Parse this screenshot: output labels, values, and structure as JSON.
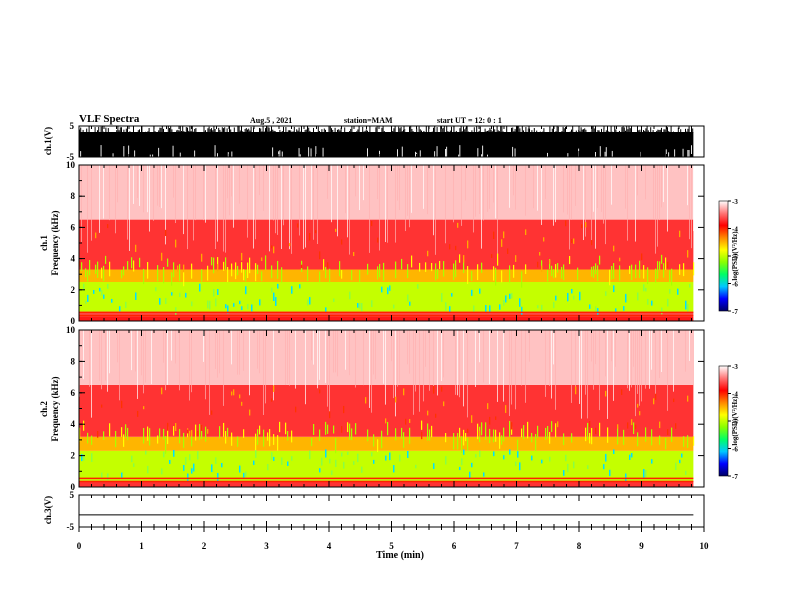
{
  "header": {
    "title": "VLF Spectra",
    "date": "Aug.5 , 2021",
    "station": "station=MAM",
    "start": "start UT = 12: 0 : 1"
  },
  "chart_data": [
    {
      "type": "line",
      "panel": "ch1-waveform",
      "ylabel": "ch.1(V)",
      "ylim": [
        -5,
        5
      ],
      "yticks": [
        "5",
        "-5"
      ],
      "xlim": [
        0,
        10
      ],
      "trace_color": "#000000",
      "note": "dense black trace fills the panel, recording ends near 9.8 min"
    },
    {
      "type": "heatmap",
      "panel": "ch1-spectrogram",
      "ylabel": "ch.1 Frequency (kHz)",
      "ylabel_lines": [
        "ch.1",
        "Frequency (kHz)"
      ],
      "ylim": [
        0,
        10
      ],
      "yticks": [
        "0",
        "2",
        "4",
        "6",
        "8",
        "10"
      ],
      "xlim": [
        0,
        10
      ],
      "data_end_min": 9.83,
      "colorbar": {
        "label": "log(PSD)(V²/Hz)",
        "range": [
          -7,
          -3
        ],
        "ticks": [
          "-3",
          "-4",
          "-5",
          "-6",
          "-7"
        ],
        "colors": [
          "#000066",
          "#0000ff",
          "#00c8ff",
          "#00ff66",
          "#88ff00",
          "#ffff00",
          "#ff8800",
          "#ff0000",
          "#ff7777",
          "#ffffff"
        ]
      },
      "bands": [
        {
          "from_khz": 0.0,
          "to_khz": 0.3,
          "log_psd": -3.8
        },
        {
          "from_khz": 0.3,
          "to_khz": 0.6,
          "log_psd": -3.6
        },
        {
          "from_khz": 0.6,
          "to_khz": 2.5,
          "log_psd": -5.0
        },
        {
          "from_khz": 2.5,
          "to_khz": 3.3,
          "log_psd": -4.5
        },
        {
          "from_khz": 3.3,
          "to_khz": 6.5,
          "log_psd": -3.7
        },
        {
          "from_khz": 6.5,
          "to_khz": 10.0,
          "log_psd": -3.2
        }
      ]
    },
    {
      "type": "heatmap",
      "panel": "ch2-spectrogram",
      "ylabel": "ch.2 Frequency (kHz)",
      "ylabel_lines": [
        "ch.2",
        "Frequency (kHz)"
      ],
      "ylim": [
        0,
        10
      ],
      "yticks": [
        "0",
        "2",
        "4",
        "6",
        "8",
        "10"
      ],
      "xlim": [
        0,
        10
      ],
      "data_end_min": 9.83,
      "colorbar": {
        "label": "log(PSD)(V²/Hz)",
        "range": [
          -7,
          -3
        ],
        "ticks": [
          "-3",
          "-4",
          "-5",
          "-6",
          "-7"
        ]
      },
      "bands": [
        {
          "from_khz": 0.0,
          "to_khz": 0.4,
          "log_psd": -3.7
        },
        {
          "from_khz": 0.4,
          "to_khz": 2.3,
          "log_psd": -5.0
        },
        {
          "from_khz": 2.3,
          "to_khz": 3.2,
          "log_psd": -4.5
        },
        {
          "from_khz": 3.2,
          "to_khz": 6.5,
          "log_psd": -3.7
        },
        {
          "from_khz": 6.5,
          "to_khz": 10.0,
          "log_psd": -3.2
        }
      ]
    },
    {
      "type": "line",
      "panel": "ch3-waveform",
      "ylabel": "ch.3(V)",
      "ylim": [
        -5,
        5
      ],
      "yticks": [
        "5",
        "-5"
      ],
      "xlim": [
        0,
        10
      ],
      "xlabel": "Time (min)",
      "xticks": [
        "0",
        "1",
        "2",
        "3",
        "4",
        "5",
        "6",
        "7",
        "8",
        "9",
        "10"
      ],
      "x": [
        0,
        9.83
      ],
      "y": [
        -1.2,
        -1.2
      ],
      "trace_color": "#000000"
    }
  ]
}
